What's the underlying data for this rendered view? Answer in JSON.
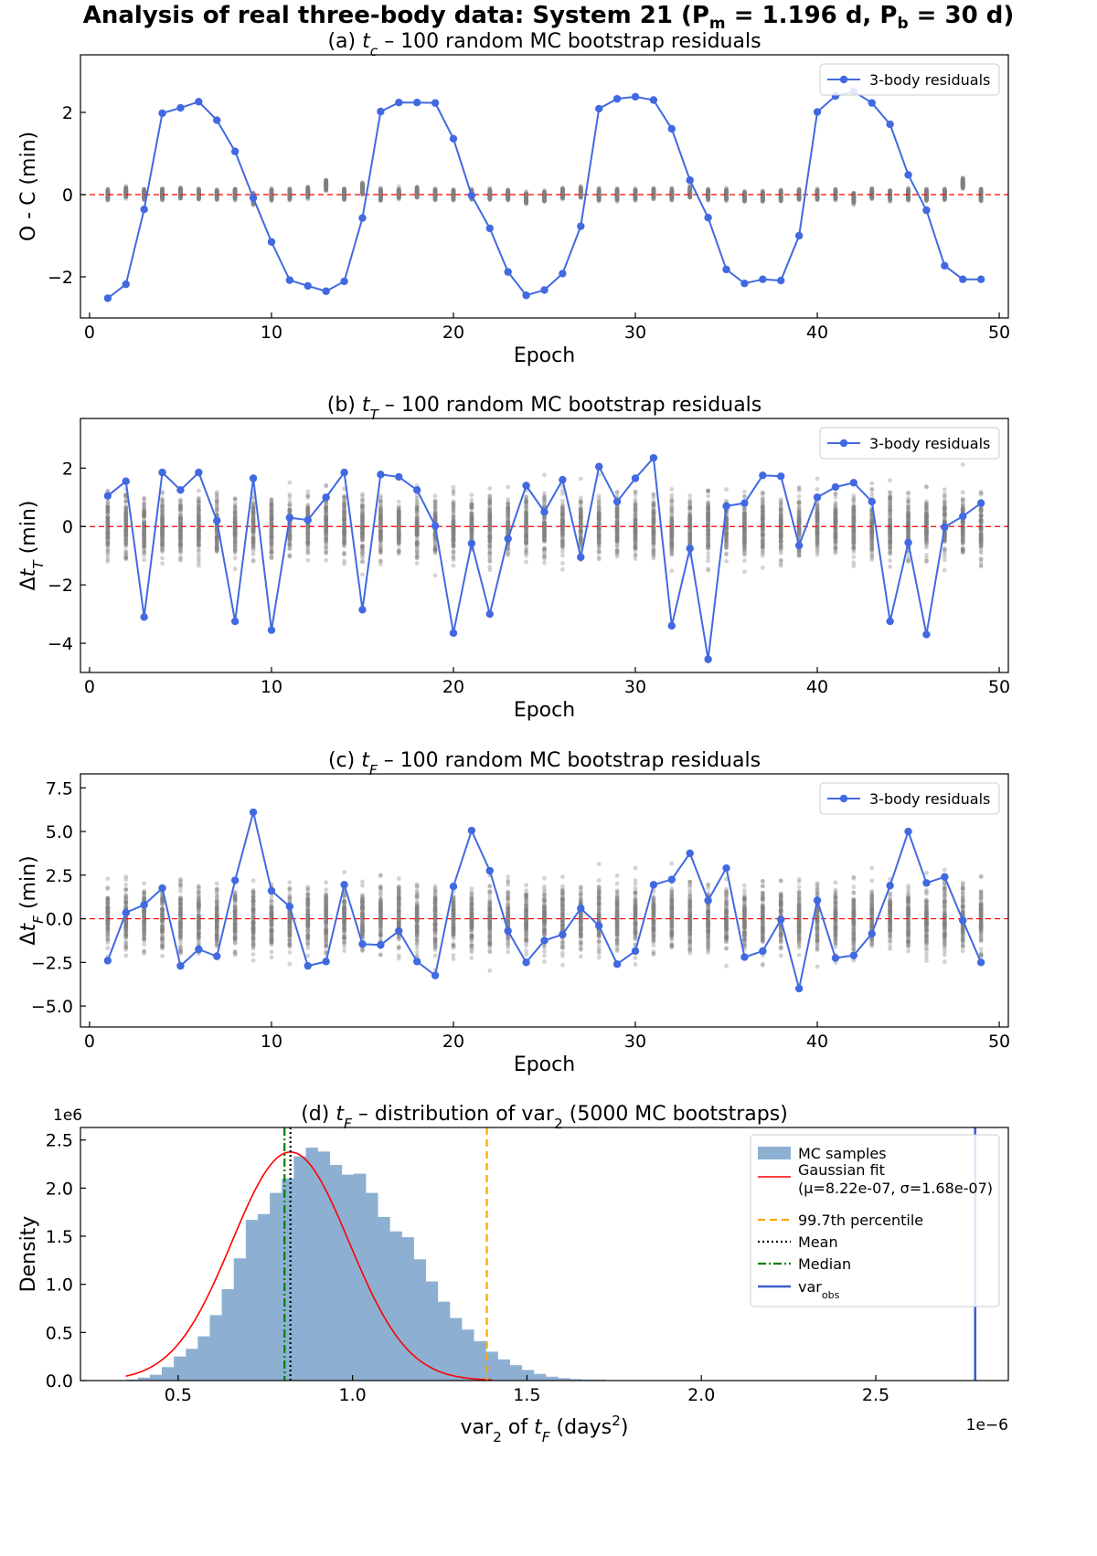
{
  "figure": {
    "suptitle": "Analysis of real three-body data: System 21 (P_m = 1.196 d, P_b = 30 d)",
    "suptitle_parts": {
      "prefix": "Analysis of real three-body data: System 21 (",
      "pm": "P",
      "pm_sub": "m",
      "pm_val": " = 1.196 d, ",
      "pb": "P",
      "pb_sub": "b",
      "pb_val": " = 30 d)"
    }
  },
  "colors": {
    "residual_line": "#4169e1",
    "mc_points": "#808080",
    "zero_line": "#ff0000",
    "hist": "#8db0d2",
    "gauss": "#ff0000",
    "p997": "#ffa500",
    "mean": "#000000",
    "median": "#008000",
    "varobs": "#3a5fcd"
  },
  "chart_data": [
    {
      "type": "scatter",
      "title": "(a) t_c – 100 random MC bootstrap residuals",
      "title_parts": {
        "pre": "(a) ",
        "sym": "t",
        "sub": "c",
        "post": " – 100 random MC bootstrap residuals"
      },
      "xlabel": "Epoch",
      "ylabel": "O - C (min)",
      "xlim": [
        -0.5,
        50.5
      ],
      "ylim": [
        -3.0,
        3.4
      ],
      "xticks": [
        0,
        10,
        20,
        30,
        40,
        50
      ],
      "yticks": [
        -2,
        0,
        2
      ],
      "legend": {
        "label": "3-body residuals",
        "placement": "upper right"
      },
      "mc_spread": 0.13,
      "mc_offsets": [
        0.0,
        0.05,
        0.0,
        0.02,
        0.03,
        0.02,
        0.0,
        0.02,
        -0.1,
        0.0,
        0.0,
        0.05,
        0.22,
        0.02,
        0.15,
        0.0,
        0.02,
        0.05,
        0.0,
        0.0,
        0.0,
        0.0,
        0.0,
        -0.08,
        -0.05,
        0.02,
        0.05,
        0.0,
        0.0,
        0.0,
        0.02,
        0.0,
        0.05,
        0.0,
        0.0,
        -0.05,
        -0.05,
        -0.02,
        0.0,
        0.0,
        0.0,
        -0.08,
        0.02,
        -0.02,
        0.0,
        -0.02,
        0.0,
        0.28,
        -0.02
      ],
      "series": [
        {
          "name": "3-body residuals",
          "x": [
            1,
            2,
            3,
            4,
            5,
            6,
            7,
            8,
            9,
            10,
            11,
            12,
            13,
            14,
            15,
            16,
            17,
            18,
            19,
            20,
            21,
            22,
            23,
            24,
            25,
            26,
            27,
            28,
            29,
            30,
            31,
            32,
            33,
            34,
            35,
            36,
            37,
            38,
            39,
            40,
            41,
            42,
            43,
            44,
            45,
            46,
            47,
            48,
            49
          ],
          "y": [
            -2.52,
            -2.18,
            -0.36,
            1.98,
            2.11,
            2.26,
            1.81,
            1.05,
            -0.08,
            -1.15,
            -2.08,
            -2.22,
            -2.35,
            -2.11,
            -0.57,
            2.02,
            2.24,
            2.24,
            2.23,
            1.36,
            -0.02,
            -0.82,
            -1.88,
            -2.45,
            -2.32,
            -1.92,
            -0.77,
            2.09,
            2.33,
            2.38,
            2.3,
            1.6,
            0.35,
            -0.56,
            -1.82,
            -2.16,
            -2.06,
            -2.09,
            -1.0,
            2.01,
            2.4,
            2.51,
            2.23,
            1.71,
            0.48,
            -0.38,
            -1.73,
            -2.06,
            -2.06
          ]
        }
      ]
    },
    {
      "type": "scatter",
      "title": "(b) t_T – 100 random MC bootstrap residuals",
      "title_parts": {
        "pre": "(b) ",
        "sym": "t",
        "sub": "T",
        "post": " – 100 random MC bootstrap residuals"
      },
      "xlabel": "Epoch",
      "ylabel": "Δt_T (min)",
      "ylabel_parts": {
        "pre": "Δ",
        "sym": "t",
        "sub": "T",
        "post": " (min)"
      },
      "xlim": [
        -0.5,
        50.5
      ],
      "ylim": [
        -5.0,
        3.7
      ],
      "xticks": [
        0,
        10,
        20,
        30,
        40,
        50
      ],
      "yticks": [
        -4,
        -2,
        0,
        2
      ],
      "legend": {
        "label": "3-body residuals",
        "placement": "upper right"
      },
      "mc_spread": 0.9,
      "series": [
        {
          "name": "3-body residuals",
          "x": [
            1,
            2,
            3,
            4,
            5,
            6,
            7,
            8,
            9,
            10,
            11,
            12,
            13,
            14,
            15,
            16,
            17,
            18,
            19,
            20,
            21,
            22,
            23,
            24,
            25,
            26,
            27,
            28,
            29,
            30,
            31,
            32,
            33,
            34,
            35,
            36,
            37,
            38,
            39,
            40,
            41,
            42,
            43,
            44,
            45,
            46,
            47,
            48,
            49
          ],
          "y": [
            1.05,
            1.55,
            -3.1,
            1.85,
            1.25,
            1.85,
            0.2,
            -3.25,
            1.65,
            -3.55,
            0.3,
            0.22,
            1.0,
            1.85,
            -2.85,
            1.78,
            1.7,
            1.25,
            0.02,
            -3.65,
            -0.58,
            -3.0,
            -0.42,
            1.4,
            0.5,
            1.6,
            -1.05,
            2.05,
            0.85,
            1.65,
            2.35,
            -3.4,
            -0.75,
            -4.55,
            0.7,
            0.8,
            1.75,
            1.72,
            -0.65,
            1.0,
            1.35,
            1.5,
            0.85,
            -3.25,
            -0.55,
            -3.7,
            -0.02,
            0.35,
            0.8
          ]
        }
      ]
    },
    {
      "type": "scatter",
      "title": "(c) t_F – 100 random MC bootstrap residuals",
      "title_parts": {
        "pre": "(c) ",
        "sym": "t",
        "sub": "F",
        "post": " – 100 random MC bootstrap residuals"
      },
      "xlabel": "Epoch",
      "ylabel": "Δt_F (min)",
      "ylabel_parts": {
        "pre": "Δ",
        "sym": "t",
        "sub": "F",
        "post": " (min)"
      },
      "xlim": [
        -0.5,
        50.5
      ],
      "ylim": [
        -6.2,
        8.3
      ],
      "xticks": [
        0,
        10,
        20,
        30,
        40,
        50
      ],
      "yticks": [
        -5.0,
        -2.5,
        0.0,
        2.5,
        5.0,
        7.5
      ],
      "yticklabels": [
        "−5.0",
        "−2.5",
        "0.0",
        "2.5",
        "5.0",
        "7.5"
      ],
      "legend": {
        "label": "3-body residuals",
        "placement": "upper right"
      },
      "mc_spread": 1.6,
      "series": [
        {
          "name": "3-body residuals",
          "x": [
            1,
            2,
            3,
            4,
            5,
            6,
            7,
            8,
            9,
            10,
            11,
            12,
            13,
            14,
            15,
            16,
            17,
            18,
            19,
            20,
            21,
            22,
            23,
            24,
            25,
            26,
            27,
            28,
            29,
            30,
            31,
            32,
            33,
            34,
            35,
            36,
            37,
            38,
            39,
            40,
            41,
            42,
            43,
            44,
            45,
            46,
            47,
            48,
            49
          ],
          "y": [
            -2.4,
            0.35,
            0.8,
            1.75,
            -2.7,
            -1.75,
            -2.15,
            2.2,
            6.1,
            1.6,
            0.7,
            -2.7,
            -2.45,
            1.95,
            -1.45,
            -1.5,
            -0.7,
            -2.45,
            -3.25,
            1.85,
            5.05,
            2.75,
            -0.7,
            -2.5,
            -1.25,
            -0.9,
            0.6,
            -0.4,
            -2.6,
            -1.85,
            1.95,
            2.25,
            3.75,
            1.05,
            2.9,
            -2.2,
            -1.85,
            -0.05,
            -4.0,
            1.05,
            -2.25,
            -2.1,
            -0.85,
            1.9,
            5.0,
            2.05,
            2.4,
            -0.1,
            -2.5
          ]
        }
      ]
    },
    {
      "type": "histogram",
      "title": "(d) t_F – distribution of var_2 (5000 MC bootstraps)",
      "title_parts": {
        "pre": "(d) ",
        "sym": "t",
        "sub": "F",
        "mid": " – distribution of var",
        "sub2": "2",
        "post": " (5000 MC bootstraps)"
      },
      "xlabel": "var_2 of t_F (days^2)",
      "xlabel_parts": {
        "pre": "var",
        "sub": "2",
        "mid": " of ",
        "sym": "t",
        "sub2": "F",
        "post": " (days",
        "sup": "2",
        "end": ")"
      },
      "ylabel": "Density",
      "x_offset_text": "1e−6",
      "y_offset_text": "1e6",
      "xlim": [
        0.22,
        2.88
      ],
      "ylim": [
        0,
        2.63
      ],
      "xticks": [
        0.5,
        1.0,
        1.5,
        2.0,
        2.5
      ],
      "xticklabels": [
        "0.5",
        "1.0",
        "1.5",
        "2.0",
        "2.5"
      ],
      "yticks": [
        0.0,
        0.5,
        1.0,
        1.5,
        2.0,
        2.5
      ],
      "yticklabels": [
        "0.0",
        "0.5",
        "1.0",
        "1.5",
        "2.0",
        "2.5"
      ],
      "bins": {
        "edges_start": 0.35,
        "width": 0.0344,
        "density": [
          0.01,
          0.03,
          0.06,
          0.14,
          0.25,
          0.33,
          0.46,
          0.68,
          0.95,
          1.27,
          1.67,
          1.73,
          1.95,
          2.1,
          2.33,
          2.42,
          2.38,
          2.24,
          2.14,
          2.15,
          1.95,
          1.7,
          1.55,
          1.49,
          1.26,
          1.03,
          0.82,
          0.65,
          0.53,
          0.41,
          0.3,
          0.22,
          0.16,
          0.11,
          0.07,
          0.04,
          0.025,
          0.015,
          0.01,
          0.01,
          0.005,
          0.005,
          0.005,
          0.002,
          0.002,
          0.002
        ]
      },
      "gaussian": {
        "mu": 0.822,
        "sigma": 0.168,
        "xrange": [
          0.35,
          1.4
        ]
      },
      "lines": {
        "p997": 1.385,
        "mean": 0.822,
        "median": 0.805,
        "var_obs": 2.785
      },
      "legend": {
        "placement": "upper right",
        "entries": [
          {
            "key": "hist",
            "label": "MC samples"
          },
          {
            "key": "gauss",
            "label": "Gaussian fit",
            "label2": "(μ=8.22e-07, σ=1.68e-07)"
          },
          {
            "key": "p997",
            "label": "99.7th percentile"
          },
          {
            "key": "mean",
            "label": "Mean"
          },
          {
            "key": "median",
            "label": "Median"
          },
          {
            "key": "varobs",
            "label": "var",
            "sub": "obs"
          }
        ]
      }
    }
  ]
}
